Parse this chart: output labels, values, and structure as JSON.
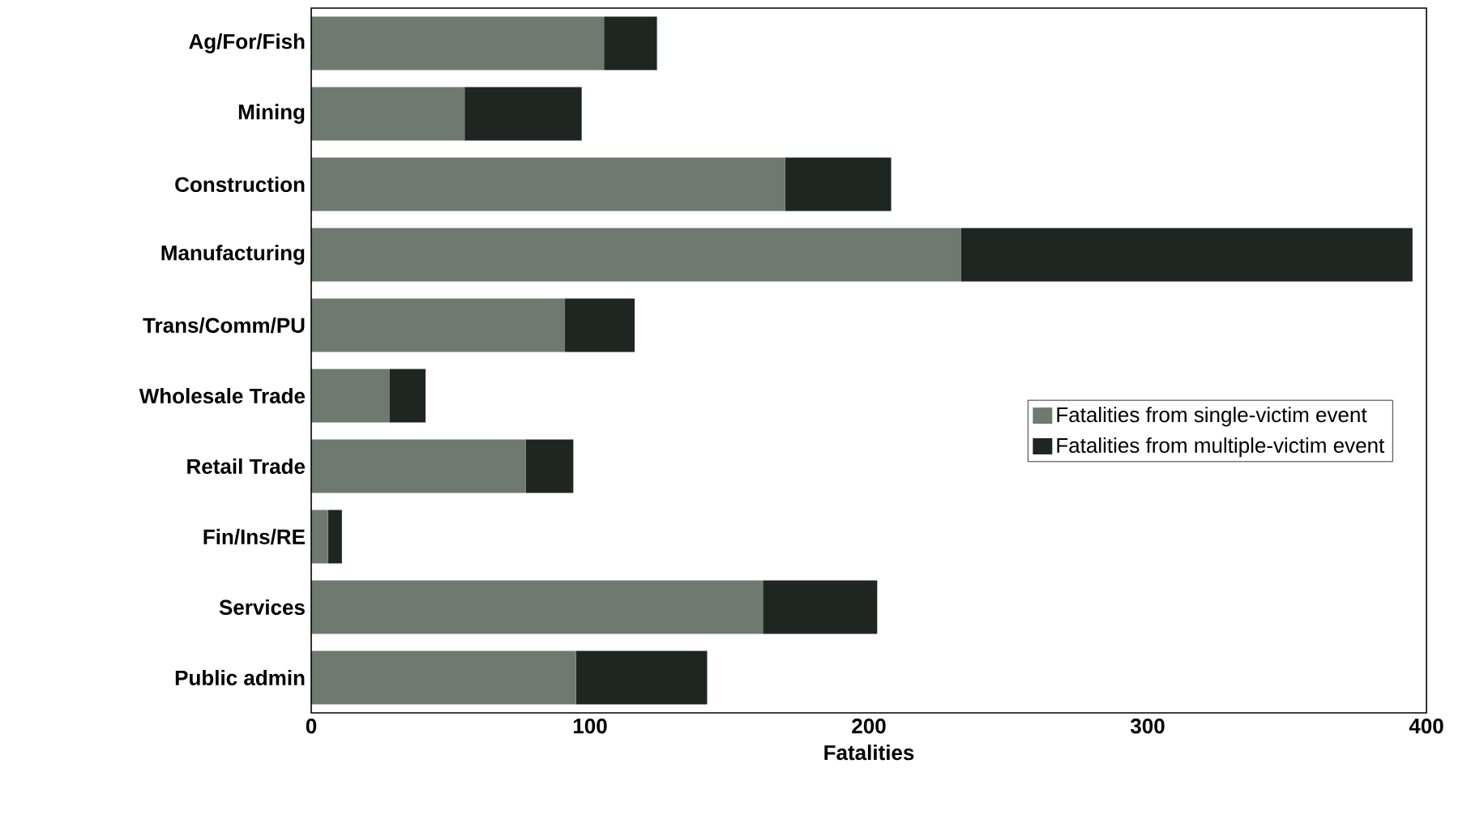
{
  "chart_data": {
    "type": "bar",
    "orientation": "horizontal",
    "stacked": true,
    "categories": [
      "Ag/For/Fish",
      "Mining",
      "Construction",
      "Manufacturing",
      "Trans/Comm/PU",
      "Wholesale Trade",
      "Retail Trade",
      "Fin/Ins/RE",
      "Services",
      "Public admin"
    ],
    "series": [
      {
        "name": "Fatalities from single-victim event",
        "color": "#6e7a70",
        "values": [
          105,
          55,
          170,
          233,
          91,
          28,
          77,
          6,
          162,
          95
        ]
      },
      {
        "name": "Fatalities from multiple-victim event",
        "color": "#1f2622",
        "values": [
          19,
          42,
          38,
          162,
          25,
          13,
          17,
          5,
          41,
          47
        ]
      }
    ],
    "xlabel": "Fatalities",
    "xlim": [
      0,
      400
    ],
    "xticks": [
      0,
      100,
      200,
      300,
      400
    ],
    "legend": "right"
  }
}
